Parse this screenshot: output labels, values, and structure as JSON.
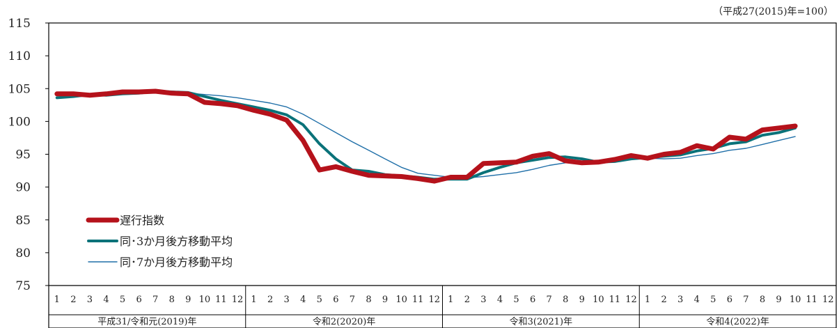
{
  "note": "（平成27(2015)年=100）",
  "chart_data": {
    "type": "line",
    "ylim": [
      75,
      115
    ],
    "yticks": [
      75,
      80,
      85,
      90,
      95,
      100,
      105,
      110,
      115
    ],
    "month_labels": [
      "1",
      "2",
      "3",
      "4",
      "5",
      "6",
      "7",
      "8",
      "9",
      "10",
      "11",
      "12"
    ],
    "year_labels": [
      "平成31/令和元(2019)年",
      "令和2(2020)年",
      "令和3(2021)年",
      "令和4(2022)年"
    ],
    "series": [
      {
        "name": "遅行指数",
        "color": "#b5121b",
        "values": [
          104.2,
          104.2,
          104.0,
          104.2,
          104.5,
          104.5,
          104.6,
          104.3,
          104.2,
          102.9,
          102.7,
          102.4,
          101.7,
          101.1,
          100.2,
          97.1,
          92.6,
          93.1,
          92.4,
          91.8,
          91.7,
          91.6,
          91.3,
          90.9,
          91.5,
          91.5,
          93.6,
          93.7,
          93.8,
          94.7,
          95.1,
          94.0,
          93.7,
          93.8,
          94.2,
          94.8,
          94.4,
          95.0,
          95.3,
          96.3,
          95.8,
          97.6,
          97.3,
          98.7,
          99.0,
          99.3
        ]
      },
      {
        "name": "同･3か月後方移動平均",
        "color": "#0a7279",
        "values": [
          103.6,
          103.8,
          104.1,
          104.0,
          104.2,
          104.3,
          104.6,
          104.5,
          104.4,
          103.8,
          103.2,
          102.7,
          102.2,
          101.7,
          101.0,
          99.5,
          96.6,
          94.3,
          92.6,
          92.4,
          91.9,
          91.7,
          91.5,
          91.2,
          91.2,
          91.2,
          92.2,
          93.0,
          93.7,
          94.1,
          94.5,
          94.6,
          94.3,
          93.8,
          93.9,
          94.3,
          94.5,
          94.7,
          94.9,
          95.5,
          95.9,
          96.6,
          96.9,
          97.9,
          98.3,
          99.0
        ]
      },
      {
        "name": "同･7か月後方移動平均",
        "color": "#1f6fa8",
        "values": [
          103.7,
          103.8,
          104.0,
          104.0,
          104.1,
          104.2,
          104.4,
          104.3,
          104.3,
          104.1,
          103.9,
          103.6,
          103.2,
          102.8,
          102.2,
          101.1,
          99.7,
          98.3,
          96.9,
          95.6,
          94.3,
          93.0,
          92.1,
          91.8,
          91.5,
          91.4,
          91.6,
          91.9,
          92.2,
          92.7,
          93.3,
          93.7,
          93.9,
          93.9,
          94.0,
          94.3,
          94.4,
          94.3,
          94.4,
          94.8,
          95.1,
          95.6,
          95.9,
          96.5,
          97.1,
          97.7
        ]
      }
    ]
  }
}
